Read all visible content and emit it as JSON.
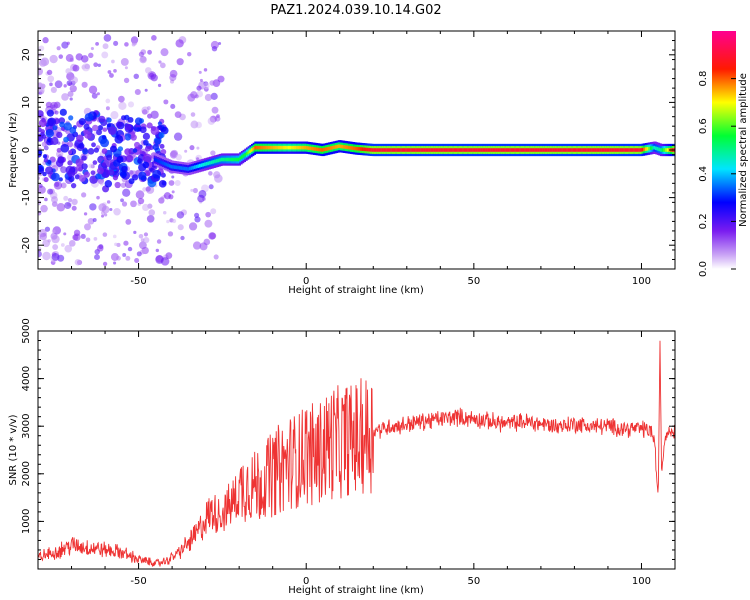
{
  "title": "PAZ1.2024.039.10.14.G02",
  "chart_data": [
    {
      "type": "heatmap",
      "xlabel": "Height of straight line (km)",
      "ylabel": "Frequency (Hz)",
      "xlim": [
        -80,
        110
      ],
      "ylim": [
        -25,
        25
      ],
      "xticks": [
        -50,
        0,
        50,
        100
      ],
      "yticks": [
        -20,
        -10,
        0,
        10,
        20
      ],
      "colorbar": {
        "label": "Normalized spectral amplitude",
        "range": [
          0.0,
          1.0
        ],
        "ticks": [
          0.0,
          0.2,
          0.4,
          0.6,
          0.8
        ],
        "tick_labels": [
          "0.0",
          "0.2",
          "0.4",
          "0.6",
          "0.8"
        ],
        "colormap": [
          "#ffffff",
          "#9933ff",
          "#0000ff",
          "#00ffff",
          "#00ff00",
          "#ffff00",
          "#ff0000",
          "#ff00aa"
        ]
      },
      "ridge": {
        "x": [
          -80,
          -70,
          -60,
          -50,
          -45,
          -40,
          -35,
          -30,
          -25,
          -20,
          -18,
          -15,
          -10,
          -5,
          0,
          5,
          10,
          15,
          20,
          30,
          40,
          50,
          60,
          70,
          80,
          90,
          100,
          104,
          106,
          110
        ],
        "frequency": [
          2,
          1,
          -1,
          -2,
          -2,
          -3.5,
          -4,
          -3,
          -2,
          -2,
          -1,
          0.5,
          0.5,
          0.5,
          0.5,
          0,
          0.8,
          0.3,
          0,
          0,
          0,
          0,
          0,
          0,
          0,
          0,
          0,
          0.5,
          0,
          0
        ],
        "amplitude": [
          0.2,
          0.2,
          0.25,
          0.25,
          0.3,
          0.35,
          0.35,
          0.45,
          0.5,
          0.55,
          0.55,
          0.8,
          0.75,
          0.7,
          0.75,
          0.8,
          0.75,
          0.8,
          0.9,
          0.9,
          0.9,
          0.9,
          0.9,
          0.9,
          0.9,
          0.9,
          0.9,
          0.45,
          0.5,
          0.9
        ]
      }
    },
    {
      "type": "line",
      "xlabel": "Height of straight line (km)",
      "ylabel": "SNR (10 * v/v)",
      "xlim": [
        -80,
        110
      ],
      "ylim": [
        0,
        5000
      ],
      "xticks": [
        -50,
        0,
        50,
        100
      ],
      "yticks": [
        1000,
        2000,
        3000,
        4000,
        5000
      ],
      "line_color": "#ee3333",
      "series": [
        {
          "x": [
            -80,
            -75,
            -70,
            -65,
            -60,
            -55,
            -50,
            -45,
            -42,
            -38,
            -35,
            -32,
            -30,
            -28,
            -25,
            -22,
            -20,
            -18,
            -15,
            -12,
            -10,
            -8,
            -5,
            -2,
            0,
            3,
            5,
            8,
            10,
            12,
            15,
            18,
            20,
            23,
            25,
            28,
            30,
            35,
            40,
            45,
            50,
            55,
            60,
            65,
            70,
            75,
            80,
            85,
            90,
            95,
            100,
            103,
            104,
            105,
            105.5,
            106,
            107,
            108,
            110
          ],
          "y": [
            250,
            350,
            500,
            450,
            400,
            350,
            200,
            120,
            150,
            350,
            550,
            800,
            1050,
            1200,
            1150,
            1400,
            1600,
            1800,
            1750,
            1900,
            2000,
            2100,
            2250,
            2300,
            2500,
            2350,
            2550,
            2700,
            2600,
            2750,
            2700,
            2850,
            2900,
            2950,
            3000,
            3000,
            3050,
            3100,
            3150,
            3200,
            3150,
            3100,
            3050,
            3100,
            3050,
            3000,
            3050,
            3000,
            3000,
            2950,
            2950,
            2900,
            2600,
            1400,
            4800,
            2000,
            2800,
            2900,
            2900
          ]
        }
      ]
    }
  ]
}
